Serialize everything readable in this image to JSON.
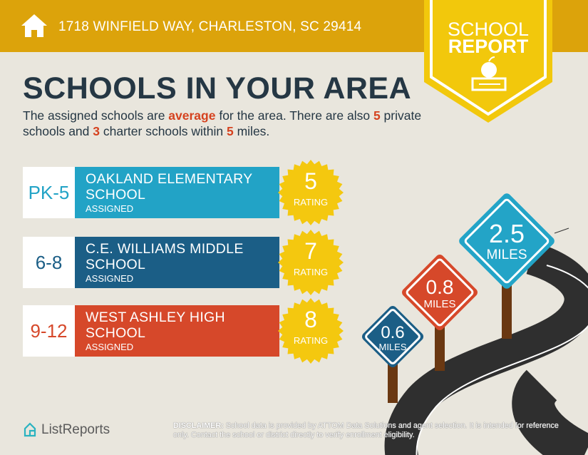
{
  "header": {
    "address": "1718 WINFIELD WAY, CHARLESTON, SC 29414",
    "badge_line1": "SCHOOL",
    "badge_line2": "REPORT"
  },
  "main": {
    "title": "SCHOOLS IN YOUR AREA",
    "desc": {
      "p1": "The assigned schools are ",
      "quality": "average",
      "p2": " for the area. There are also ",
      "private_count": "5",
      "p3": " private schools and ",
      "charter_count": "3",
      "p4": " charter schools within ",
      "miles": "5",
      "p5": " miles."
    },
    "schools": [
      {
        "grades": "PK-5",
        "name": "OAKLAND ELEMENTARY SCHOOL",
        "status": "ASSIGNED",
        "rating": "5",
        "rating_label": "RATING",
        "color": "#22a3c6"
      },
      {
        "grades": "6-8",
        "name": "C.E. WILLIAMS MIDDLE SCHOOL",
        "status": "ASSIGNED",
        "rating": "7",
        "rating_label": "RATING",
        "color": "#1b5e86"
      },
      {
        "grades": "9-12",
        "name": "WEST ASHLEY HIGH SCHOOL",
        "status": "ASSIGNED",
        "rating": "8",
        "rating_label": "RATING",
        "color": "#d6482a"
      }
    ],
    "signs": [
      {
        "value": "2.5",
        "unit": "MILES",
        "color": "#23a4c7"
      },
      {
        "value": "0.8",
        "unit": "MILES",
        "color": "#d6482a"
      },
      {
        "value": "0.6",
        "unit": "MILES",
        "color": "#1b5e86"
      }
    ]
  },
  "footer": {
    "logo": "ListReports",
    "disclaimer_label": "DISCLAIMER:",
    "disclaimer": " School data is provided by ATTOM Data Solutions and agent selection. It is intended for reference only. Contact the school or district directly to verify enrollment eligibility."
  }
}
